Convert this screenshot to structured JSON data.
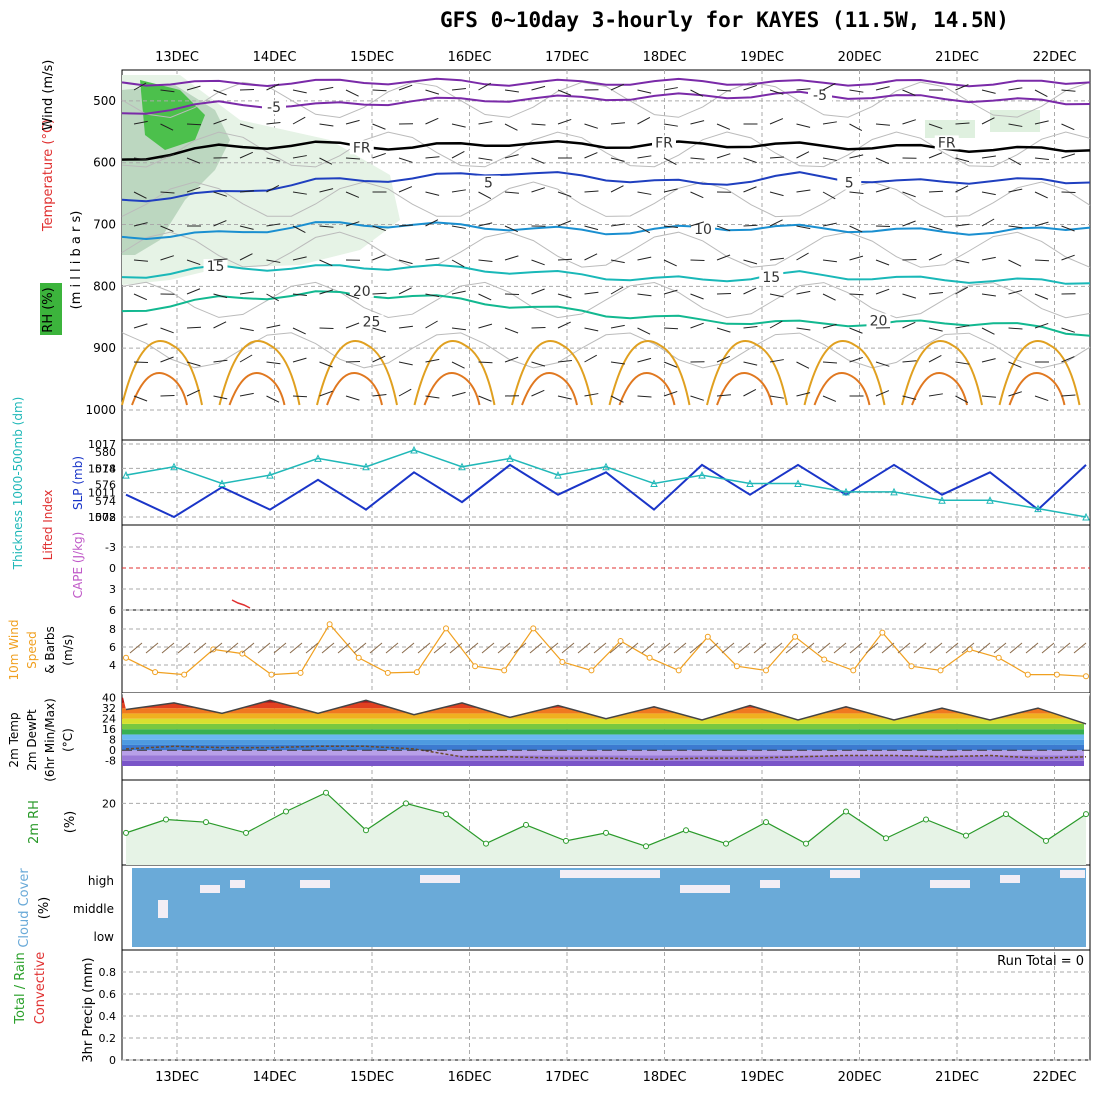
{
  "title": "GFS 0~10day 3-hourly for KAYES (11.5W, 14.5N)",
  "colors": {
    "temp_colors": [
      "#7a2aa8",
      "#1f3fbf",
      "#1a8fd0",
      "#19b8b8",
      "#12b890",
      "#e0a020",
      "#e07820",
      "#c02070"
    ],
    "rh_green": "#3cb43c",
    "slp": "#1a35c8",
    "thickness": "#20b8b8",
    "wind10": "#f0a020",
    "barb": "#8a6a4a",
    "cape": "#c05ac8",
    "lifted": "#e03030",
    "rh2m": "#2a9a2a",
    "cloud": "#6aaad8",
    "precip_total": "#2aa02a",
    "precip_conv": "#e03030"
  },
  "chart_data": [
    {
      "type": "line",
      "panel": "Temperature / RH / Wind cross-section",
      "dates": [
        "13DEC",
        "14DEC",
        "15DEC",
        "16DEC",
        "17DEC",
        "18DEC",
        "19DEC",
        "20DEC",
        "21DEC",
        "22DEC"
      ],
      "ylabels": [
        "Temperature (°C)",
        "Wind (m/s)",
        "RH (%)",
        "(m i l l i b a r s)"
      ],
      "yticks": [
        "500",
        "600",
        "700",
        "800",
        "900",
        "1000"
      ],
      "contour_labels": [
        {
          "text": "-5",
          "p": 515,
          "day": 1.2
        },
        {
          "text": "-5",
          "p": 495,
          "day": 6.8
        },
        {
          "text": "FR",
          "p": 580,
          "day": 2.1
        },
        {
          "text": "FR",
          "p": 572,
          "day": 5.2
        },
        {
          "text": "FR",
          "p": 572,
          "day": 8.1
        },
        {
          "text": "5",
          "p": 637,
          "day": 3.4
        },
        {
          "text": "5",
          "p": 637,
          "day": 7.1
        },
        {
          "text": "10",
          "p": 712,
          "day": 5.6
        },
        {
          "text": "15",
          "p": 772,
          "day": 0.6
        },
        {
          "text": "15",
          "p": 790,
          "day": 6.3
        },
        {
          "text": "20",
          "p": 812,
          "day": 2.1
        },
        {
          "text": "20",
          "p": 860,
          "day": 7.4
        },
        {
          "text": "25",
          "p": 862,
          "day": 2.2
        }
      ],
      "series": [
        {
          "level": "-10",
          "color_index": 0,
          "p": [
            470,
            472,
            470,
            468,
            471,
            470,
            469,
            471,
            470,
            472,
            470
          ]
        },
        {
          "level": "-5",
          "color_index": 0,
          "p": [
            520,
            505,
            508,
            500,
            497,
            495,
            492,
            490,
            494,
            498,
            505
          ]
        },
        {
          "level": "FR",
          "color_index": -1,
          "p": [
            595,
            575,
            570,
            575,
            568,
            572,
            570,
            572,
            575,
            578,
            580
          ]
        },
        {
          "level": "5",
          "color_index": 1,
          "p": [
            660,
            650,
            630,
            625,
            615,
            625,
            635,
            620,
            632,
            628,
            632
          ]
        },
        {
          "level": "10",
          "color_index": 2,
          "p": [
            720,
            715,
            700,
            700,
            705,
            712,
            705,
            705,
            710,
            712,
            705
          ]
        },
        {
          "level": "15",
          "color_index": 3,
          "p": [
            785,
            770,
            770,
            768,
            775,
            785,
            790,
            780,
            788,
            790,
            795
          ]
        },
        {
          "level": "20",
          "color_index": 4,
          "p": [
            840,
            820,
            812,
            815,
            830,
            845,
            855,
            860,
            860,
            858,
            880
          ]
        }
      ]
    },
    {
      "type": "line",
      "panel": "Thickness / SLP",
      "ylabels": [
        "Thickness 1000-500mb (dm)",
        "SLP (mb)"
      ],
      "yticks_left": [
        "572",
        "574",
        "576",
        "578",
        "580"
      ],
      "yticks_right": [
        "1008",
        "1011",
        "1014",
        "1017"
      ],
      "series": [
        {
          "name": "SLP",
          "values": [
            1011,
            1008,
            1012,
            1009,
            1013,
            1009,
            1014,
            1010,
            1015,
            1011,
            1014,
            1009,
            1015,
            1011,
            1015,
            1011,
            1015,
            1011,
            1014,
            1009,
            1015
          ]
        },
        {
          "name": "Thickness",
          "values": [
            577,
            578,
            576,
            577,
            579,
            578,
            580,
            578,
            579,
            577,
            578,
            576,
            577,
            576,
            576,
            575,
            575,
            574,
            574,
            573,
            572
          ]
        }
      ]
    },
    {
      "type": "line",
      "panel": "CAPE / Lifted Index",
      "ylabels": [
        "CAPE (J/kg)",
        "Lifted Index"
      ],
      "yticks": [
        "-3",
        "0",
        "3",
        "6"
      ],
      "series": [
        {
          "name": "Lifted Index",
          "values": [
            6,
            6,
            5.5,
            4.5,
            5,
            6
          ]
        }
      ]
    },
    {
      "type": "line",
      "panel": "10m Wind Speed & Barbs",
      "ylabels": [
        "10m Wind",
        "Speed",
        "& Barbs",
        "(m/s)"
      ],
      "yticks": [
        "4",
        "6",
        "8"
      ],
      "series": [
        {
          "name": "10m Wind Speed",
          "values": [
            5,
            3.3,
            3,
            6,
            5.5,
            3,
            3.2,
            9,
            5,
            3.2,
            3.3,
            8.5,
            4,
            3.5,
            8.5,
            4.5,
            3.5,
            7,
            5,
            3.5,
            7.5,
            4,
            3.5,
            7.5,
            4.8,
            3.5,
            8,
            4,
            3.5,
            6,
            5,
            3,
            3,
            2.8
          ]
        }
      ]
    },
    {
      "type": "area",
      "panel": "2m Temp / 2m DewPt",
      "ylabels": [
        "2m Temp",
        "2m DewPt",
        "(6hr Min/Max)",
        "(°C)"
      ],
      "yticks": [
        "-8",
        "0",
        "8",
        "16",
        "24",
        "32",
        "40"
      ],
      "series": [
        {
          "name": "2m Temp",
          "values": [
            31,
            36,
            28,
            38,
            28,
            38,
            27,
            36,
            25,
            34,
            24,
            33,
            23,
            34,
            23,
            33,
            23,
            32,
            23,
            32,
            20
          ]
        },
        {
          "name": "2m DewPt",
          "values": [
            1,
            3,
            2,
            2,
            3,
            3,
            1,
            -5,
            -5,
            -6,
            -6,
            -7,
            -6,
            -6,
            -5,
            -4,
            -4,
            -5,
            -4,
            -6,
            -5
          ]
        }
      ]
    },
    {
      "type": "area",
      "panel": "2m RH",
      "ylabels": [
        "2m RH",
        "(%)"
      ],
      "yticks": [
        "20"
      ],
      "series": [
        {
          "name": "2m RH",
          "values": [
            9,
            14,
            13,
            9,
            17,
            24,
            10,
            20,
            16,
            5,
            12,
            6,
            9,
            4,
            10,
            5,
            13,
            5,
            17,
            7,
            14,
            8,
            16,
            6,
            16
          ]
        }
      ]
    },
    {
      "type": "bar",
      "panel": "Cloud Cover",
      "ylabels": [
        "Cloud Cover",
        "(%)"
      ],
      "ytick_labels": [
        "high",
        "middle",
        "low"
      ]
    },
    {
      "type": "bar",
      "panel": "3hr Precip",
      "ylabels": [
        "Total / Rain",
        "Convective",
        "3hr Precip (mm)"
      ],
      "yticks": [
        "0",
        "0.2",
        "0.4",
        "0.6",
        "0.8"
      ],
      "run_total": "Run Total = 0",
      "values": []
    }
  ]
}
